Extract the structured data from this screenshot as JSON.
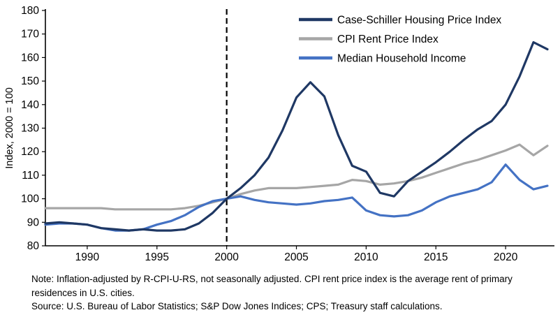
{
  "chart_data": {
    "type": "line",
    "title": "",
    "xlabel": "",
    "ylabel": "Index, 2000 = 100",
    "xlim": [
      1987,
      2023.5
    ],
    "ylim": [
      80,
      180
    ],
    "xticks": [
      1990,
      1995,
      2000,
      2005,
      2010,
      2015,
      2020
    ],
    "yticks": [
      80,
      90,
      100,
      110,
      120,
      130,
      140,
      150,
      160,
      170,
      180
    ],
    "grid": false,
    "legend_position": "top-right",
    "reference_line": {
      "x": 2000,
      "style": "dashed",
      "color": "#000000"
    },
    "x": [
      1987,
      1988,
      1989,
      1990,
      1991,
      1992,
      1993,
      1994,
      1995,
      1996,
      1997,
      1998,
      1999,
      2000,
      2001,
      2002,
      2003,
      2004,
      2005,
      2006,
      2007,
      2008,
      2009,
      2010,
      2011,
      2012,
      2013,
      2014,
      2015,
      2016,
      2017,
      2018,
      2019,
      2020,
      2021,
      2022,
      2023
    ],
    "series": [
      {
        "name": "Case-Schiller Housing Price Index",
        "color": "#1f3864",
        "values": [
          89.5,
          90,
          89.5,
          89,
          87.5,
          87,
          86.5,
          87,
          86.5,
          86.5,
          87,
          89.5,
          94,
          100,
          104.5,
          110,
          117.5,
          129,
          143,
          149.5,
          143.5,
          127,
          114,
          111.5,
          102.5,
          101,
          107.5,
          111.5,
          115.5,
          120,
          125,
          129.5,
          133,
          140,
          152,
          166.5,
          163.5
        ]
      },
      {
        "name": "CPI Rent Price Index",
        "color": "#a6a6a6",
        "values": [
          96,
          96,
          96,
          96,
          96,
          95.5,
          95.5,
          95.5,
          95.5,
          95.5,
          96,
          97,
          98.5,
          100,
          102,
          103.5,
          104.5,
          104.5,
          104.5,
          105,
          105.5,
          106,
          108,
          107.5,
          106,
          106.5,
          107.5,
          109,
          111,
          113,
          115,
          116.5,
          118.5,
          120.5,
          123,
          118.5,
          122.5
        ]
      },
      {
        "name": "Median Household Income",
        "color": "#4472c4",
        "values": [
          89,
          89.5,
          89.5,
          89,
          87.5,
          86.5,
          86.5,
          87,
          89,
          90.5,
          93,
          96.5,
          99,
          100,
          101,
          99.5,
          98.5,
          98,
          97.5,
          98,
          99,
          99.5,
          100.5,
          95,
          93,
          92.5,
          93,
          95,
          98.5,
          101,
          102.5,
          104,
          107,
          114.5,
          108,
          104,
          105.5
        ]
      }
    ]
  },
  "notes": {
    "note": "Note: Inflation-adjusted by R-CPI-U-RS, not seasonally adjusted. CPI rent price index is the average rent of primary residences in U.S. cities.",
    "source": "Source: U.S. Bureau of Labor Statistics; S&P Dow Jones Indices; CPS; Treasury staff calculations."
  }
}
